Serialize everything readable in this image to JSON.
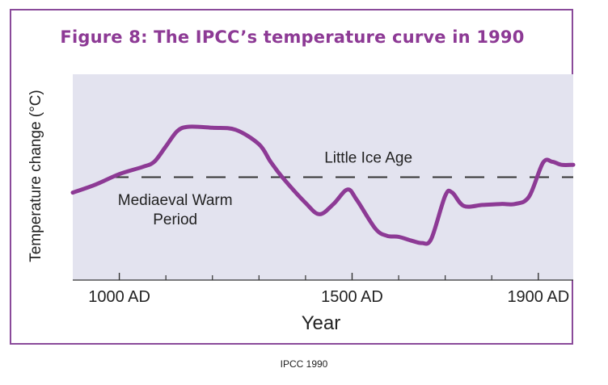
{
  "chart_data": {
    "type": "line",
    "title": "Figure 8: The IPCC’s temperature curve in 1990",
    "xlabel": "Year",
    "ylabel": "Temperature change (°C)",
    "xlim": [
      900,
      1975
    ],
    "ylim": [
      -1.0,
      1.0
    ],
    "x_tick_labels": [
      {
        "x": 1000,
        "label": "1000 AD"
      },
      {
        "x": 1500,
        "label": "1500 AD"
      },
      {
        "x": 1900,
        "label": "1900 AD"
      }
    ],
    "x_minor_ticks": [
      1100,
      1200,
      1300,
      1400,
      1600,
      1700,
      1800
    ],
    "reference_line": {
      "y": 0.0,
      "style": "dashed"
    },
    "annotations": [
      {
        "text": "Little Ice Age",
        "x": 1535,
        "y": 0.14
      },
      {
        "text": "Mediaeval Warm",
        "x": 1120,
        "y": -0.27
      },
      {
        "text": "Period",
        "x": 1120,
        "y": -0.46
      }
    ],
    "series": [
      {
        "color": "#8d3a95",
        "points": [
          [
            900,
            -0.15
          ],
          [
            950,
            -0.07
          ],
          [
            1000,
            0.03
          ],
          [
            1050,
            0.1
          ],
          [
            1075,
            0.15
          ],
          [
            1100,
            0.3
          ],
          [
            1125,
            0.45
          ],
          [
            1150,
            0.49
          ],
          [
            1200,
            0.48
          ],
          [
            1250,
            0.46
          ],
          [
            1300,
            0.32
          ],
          [
            1325,
            0.15
          ],
          [
            1350,
            0.0
          ],
          [
            1400,
            -0.25
          ],
          [
            1430,
            -0.36
          ],
          [
            1460,
            -0.26
          ],
          [
            1490,
            -0.12
          ],
          [
            1510,
            -0.22
          ],
          [
            1550,
            -0.5
          ],
          [
            1575,
            -0.57
          ],
          [
            1600,
            -0.58
          ],
          [
            1630,
            -0.62
          ],
          [
            1650,
            -0.64
          ],
          [
            1670,
            -0.6
          ],
          [
            1700,
            -0.18
          ],
          [
            1715,
            -0.15
          ],
          [
            1740,
            -0.28
          ],
          [
            1780,
            -0.27
          ],
          [
            1820,
            -0.26
          ],
          [
            1850,
            -0.26
          ],
          [
            1880,
            -0.19
          ],
          [
            1910,
            0.14
          ],
          [
            1930,
            0.15
          ],
          [
            1950,
            0.12
          ],
          [
            1975,
            0.12
          ]
        ]
      }
    ]
  },
  "source": "IPCC 1990"
}
